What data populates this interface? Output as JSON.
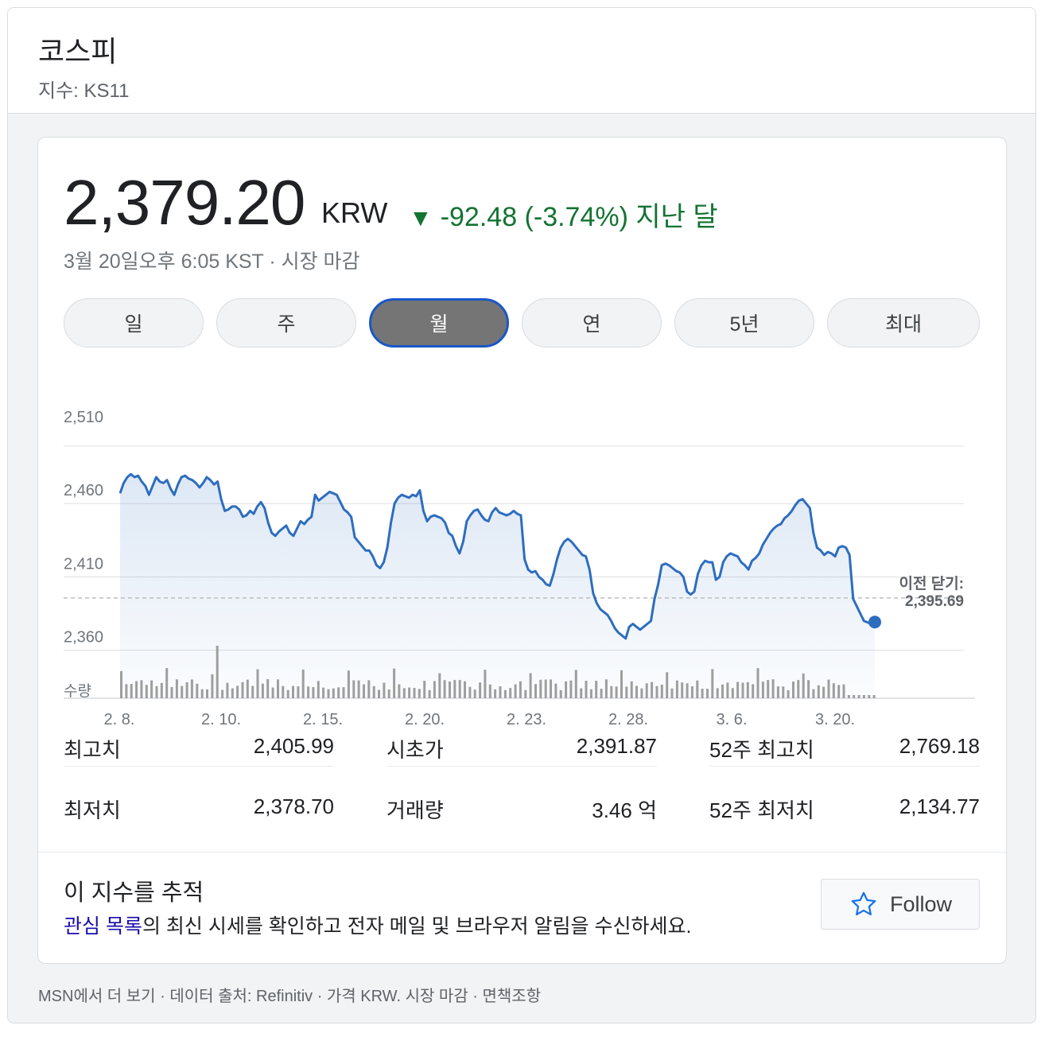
{
  "header": {
    "title": "코스피",
    "subtitle": "지수: KS11"
  },
  "quote": {
    "price": "2,379.20",
    "currency": "KRW",
    "arrow": "▼",
    "change": "-92.48 (-3.74%) 지난 달",
    "timestamp": "3월 20일오후 6:05 KST · 시장 마감"
  },
  "tabs": [
    {
      "label": "일",
      "active": false
    },
    {
      "label": "주",
      "active": false
    },
    {
      "label": "월",
      "active": true
    },
    {
      "label": "연",
      "active": false
    },
    {
      "label": "5년",
      "active": false
    },
    {
      "label": "최대",
      "active": false
    }
  ],
  "chart_data": {
    "type": "line",
    "y_ticks": [
      "2,510",
      "2,460",
      "2,410",
      "2,360"
    ],
    "ylim": [
      2330,
      2510
    ],
    "x_ticks": [
      "2. 8.",
      "2. 10.",
      "2. 15.",
      "2. 20.",
      "2. 23.",
      "2. 28.",
      "3. 6.",
      "3. 20."
    ],
    "volume_label": "수량",
    "previous_close_label": "이전 닫기:",
    "previous_close": "2,395.69",
    "previous_close_value": 2395.69,
    "series": [
      {
        "values": [
          2467,
          2474,
          2478,
          2480,
          2478,
          2479,
          2475,
          2472,
          2466,
          2472,
          2478,
          2475,
          2474,
          2476,
          2470,
          2466,
          2473,
          2478,
          2479,
          2477,
          2476,
          2474,
          2471,
          2474,
          2478,
          2476,
          2473,
          2475,
          2463,
          2455,
          2456,
          2458,
          2458,
          2456,
          2451,
          2452,
          2455,
          2453,
          2458,
          2461,
          2457,
          2447,
          2440,
          2438,
          2441,
          2443,
          2445,
          2440,
          2438,
          2443,
          2448,
          2446,
          2449,
          2451,
          2466,
          2462,
          2464,
          2466,
          2468,
          2467,
          2466,
          2461,
          2456,
          2454,
          2451,
          2437,
          2434,
          2431,
          2428,
          2428,
          2424,
          2418,
          2416,
          2420,
          2430,
          2447,
          2460,
          2464,
          2466,
          2465,
          2464,
          2466,
          2465,
          2469,
          2455,
          2448,
          2451,
          2452,
          2451,
          2450,
          2447,
          2440,
          2438,
          2431,
          2426,
          2434,
          2448,
          2452,
          2455,
          2456,
          2452,
          2449,
          2448,
          2454,
          2457,
          2454,
          2453,
          2452,
          2453,
          2455,
          2453,
          2452,
          2422,
          2415,
          2413,
          2414,
          2410,
          2408,
          2405,
          2404,
          2412,
          2422,
          2430,
          2434,
          2436,
          2434,
          2431,
          2428,
          2425,
          2424,
          2415,
          2399,
          2392,
          2388,
          2386,
          2384,
          2380,
          2375,
          2372,
          2370,
          2368,
          2376,
          2378,
          2376,
          2374,
          2376,
          2378,
          2380,
          2395,
          2405,
          2418,
          2419,
          2418,
          2416,
          2414,
          2413,
          2410,
          2400,
          2398,
          2400,
          2412,
          2418,
          2421,
          2420,
          2420,
          2408,
          2410,
          2420,
          2424,
          2426,
          2425,
          2424,
          2420,
          2418,
          2415,
          2421,
          2423,
          2426,
          2432,
          2436,
          2440,
          2443,
          2445,
          2446,
          2450,
          2452,
          2455,
          2459,
          2462,
          2463,
          2460,
          2457,
          2440,
          2430,
          2428,
          2425,
          2427,
          2426,
          2424,
          2430,
          2431,
          2430,
          2425,
          2395,
          2390,
          2385,
          2380,
          2379,
          2378,
          2379.2
        ]
      }
    ]
  },
  "stats": [
    {
      "label": "최고치",
      "value": "2,405.99"
    },
    {
      "label": "최저치",
      "value": "2,378.70"
    },
    {
      "label": "시초가",
      "value": "2,391.87"
    },
    {
      "label": "거래량",
      "value": "3.46 억"
    },
    {
      "label": "52주 최고치",
      "value": "2,769.18"
    },
    {
      "label": "52주 최저치",
      "value": "2,134.77"
    }
  ],
  "track": {
    "title": "이 지수를 추적",
    "link": "관심 목록",
    "desc": "의 최신 시세를 확인하고 전자 메일 및 브라우저 알림을 수신하세요.",
    "follow_label": "Follow"
  },
  "footer": "MSN에서 더 보기 · 데이터 출처: Refinitiv · 가격 KRW. 시장 마감 · 면책조항",
  "colors": {
    "line": "#2d6dbf",
    "change": "#137333",
    "active_tab": "#757575",
    "active_border": "#1a57c7",
    "volume": "#9e9e9e"
  }
}
